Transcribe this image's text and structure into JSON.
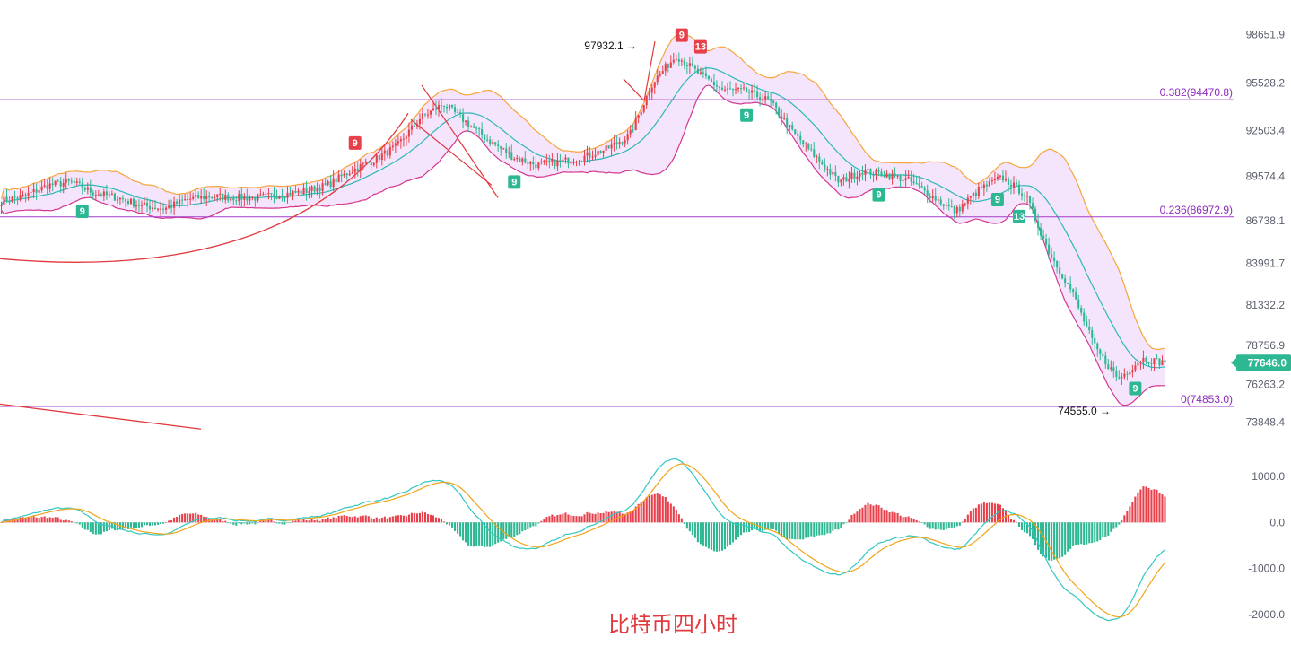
{
  "watermark": "比特币四小时",
  "colors": {
    "up": "#e8404b",
    "down": "#2db893",
    "band_upper": "#f7a43a",
    "band_lower": "#d3368f",
    "band_mid": "#2bb8b5",
    "band_fill": "#f2dcfb",
    "fib": "#a63bc9",
    "macd_dif": "#31c7c1",
    "macd_dea": "#f0a417",
    "trendline": "#e0393e",
    "current_price": "#2db893"
  },
  "chart_data": {
    "type": "candlestick",
    "title": "",
    "price_axis": {
      "range": [
        73300,
        99700
      ],
      "ticks": [
        "98651.9",
        "95528.2",
        "92503.4",
        "89574.4",
        "86738.1",
        "83991.7",
        "81332.2",
        "78756.9",
        "76263.2",
        "73848.4"
      ]
    },
    "macd_axis": {
      "range": [
        -2600,
        1600
      ],
      "ticks": [
        "1000.0",
        "0.0",
        "-1000.0",
        "-2000.0"
      ]
    },
    "fib_levels": [
      {
        "label": "0.382(94470.8)",
        "value": 94470.8
      },
      {
        "label": "0.236(86972.9)",
        "value": 86972.9
      },
      {
        "label": "0(74853.0)",
        "value": 74853.0
      }
    ],
    "annotations": [
      {
        "text": "97932.1",
        "value": 97932.1,
        "kind": "high"
      },
      {
        "text": "74555.0",
        "value": 74555.0,
        "kind": "low"
      }
    ],
    "current_price": "77646.0",
    "price_path": [
      88000,
      88300,
      89000,
      89200,
      88500,
      88200,
      87700,
      87500,
      88100,
      88300,
      88200,
      88200,
      88400,
      88600,
      89000,
      89900,
      90600,
      91500,
      93300,
      94200,
      93000,
      91800,
      90800,
      90300,
      90500,
      90800,
      91300,
      92200,
      95600,
      97300,
      96100,
      95100,
      95000,
      94400,
      92400,
      90800,
      89200,
      89900,
      89700,
      89300,
      88300,
      87300,
      88700,
      89500,
      88400,
      84800,
      82200,
      78600,
      76600,
      77900,
      77646
    ],
    "seq_markers": [
      {
        "label": "9",
        "i": 30,
        "color": "down"
      },
      {
        "label": "9",
        "i": 131,
        "color": "up"
      },
      {
        "label": "9",
        "i": 190,
        "color": "down"
      },
      {
        "label": "9",
        "i": 252,
        "color": "up"
      },
      {
        "label": "13",
        "i": 259,
        "color": "up"
      },
      {
        "label": "9",
        "i": 276,
        "color": "down"
      },
      {
        "label": "9",
        "i": 325,
        "color": "down"
      },
      {
        "label": "9",
        "i": 369,
        "color": "down"
      },
      {
        "label": "13",
        "i": 377,
        "color": "down"
      },
      {
        "label": "9",
        "i": 420,
        "color": "down"
      }
    ]
  }
}
